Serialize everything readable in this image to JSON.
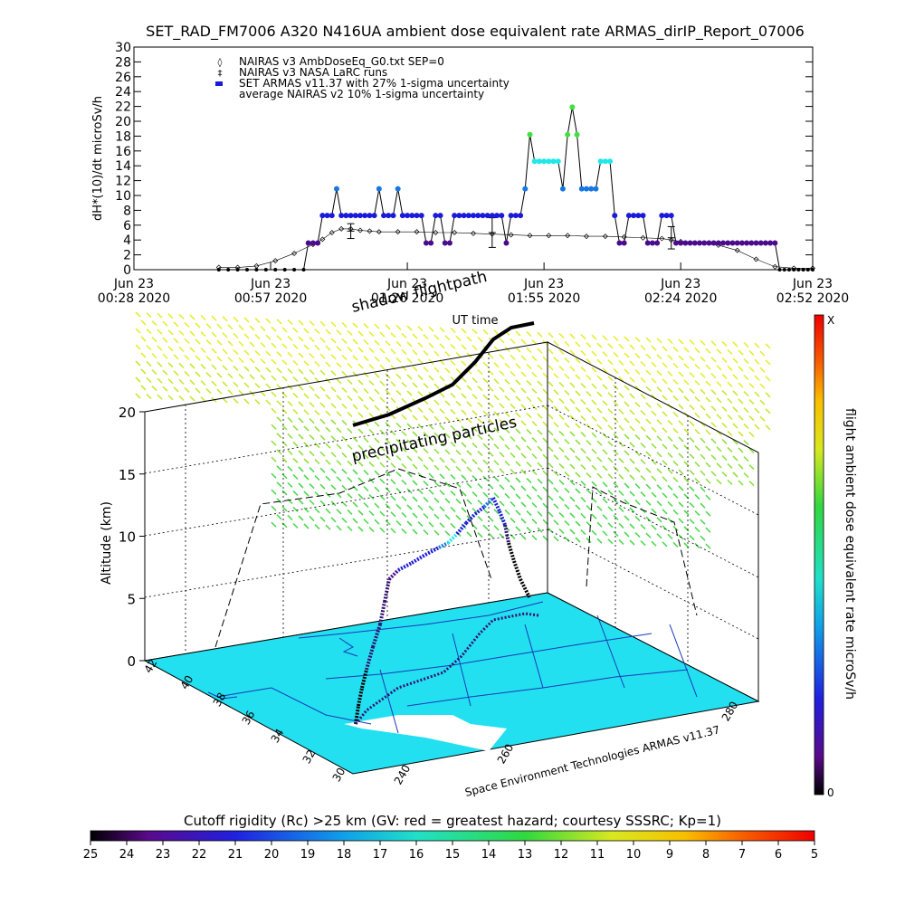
{
  "title": "SET_RAD_FM7006  A320 N416UA ambient dose equivalent rate ARMAS_dirIP_Report_07006",
  "colors": {
    "purple": "#4a0c8c",
    "dark_blue": "#1a1ad8",
    "blue": "#1878e0",
    "cyan": "#20e8e8",
    "green": "#40e040",
    "map_fill": "#22e0f0",
    "map_line": "#1838b8",
    "black": "#000000"
  },
  "chart_data": [
    {
      "type": "line",
      "ylabel": "dH*(10)/dt microSv/h",
      "xlabel": "UT time",
      "ylim": [
        0,
        30
      ],
      "yticks": [
        0,
        2,
        4,
        6,
        8,
        10,
        12,
        14,
        16,
        18,
        20,
        22,
        24,
        26,
        28,
        30
      ],
      "xlim_minutes": [
        28,
        172
      ],
      "xticks": [
        {
          "m": 28,
          "l1": "Jun 23",
          "l2": "00:28 2020"
        },
        {
          "m": 57,
          "l1": "Jun 23",
          "l2": "00:57 2020"
        },
        {
          "m": 86,
          "l1": "Jun 23",
          "l2": "01:26 2020"
        },
        {
          "m": 115,
          "l1": "Jun 23",
          "l2": "01:55 2020"
        },
        {
          "m": 144,
          "l1": "Jun 23",
          "l2": "02:24 2020"
        },
        {
          "m": 172,
          "l1": "Jun 23",
          "l2": "02:52 2020"
        }
      ],
      "legend": [
        "NAIRAS v3 AmbDoseEq_G0.txt SEP=0",
        "NAIRAS v3 NASA LaRC runs",
        "SET ARMAS v11.37 with 27% 1-sigma uncertainty",
        "average NAIRAS v2 10% 1-sigma uncertainty"
      ],
      "series": [
        {
          "name": "NAIRAS v3 AmbDoseEq_G0.txt SEP=0",
          "x": [
            46,
            50,
            54,
            58,
            62,
            66,
            68,
            70,
            72,
            74,
            76,
            78,
            80,
            84,
            88,
            92,
            96,
            100,
            104,
            108,
            112,
            116,
            120,
            124,
            128,
            132,
            136,
            140,
            142,
            144,
            146,
            148,
            152,
            156,
            160,
            164,
            168,
            172
          ],
          "y": [
            0.3,
            0.3,
            0.5,
            1.2,
            2.2,
            3.4,
            4.1,
            5.0,
            5.5,
            5.5,
            5.3,
            5.2,
            5.1,
            5.1,
            5.1,
            5.0,
            5.0,
            4.9,
            4.8,
            4.7,
            4.6,
            4.6,
            4.6,
            4.5,
            4.5,
            4.4,
            4.3,
            4.2,
            4.0,
            3.8,
            3.6,
            3.6,
            3.3,
            2.6,
            1.4,
            0.4,
            0.2,
            0.2
          ]
        },
        {
          "name": "NAIRAS v3 NASA LaRC runs",
          "x": [
            74,
            104,
            142
          ],
          "y": [
            5.2,
            5.0,
            4.3
          ],
          "err": [
            1.0,
            2.0,
            1.5
          ]
        },
        {
          "name": "SET ARMAS v11.37 with 27% 1-sigma uncertainty",
          "x": [
            46,
            48,
            50,
            52,
            54,
            56,
            58,
            60,
            62,
            64,
            65,
            66,
            67,
            68,
            69,
            70,
            71,
            72,
            73,
            74,
            75,
            76,
            77,
            78,
            79,
            80,
            81,
            82,
            83,
            84,
            85,
            86,
            87,
            88,
            89,
            90,
            91,
            92,
            93,
            94,
            95,
            96,
            97,
            98,
            99,
            100,
            101,
            102,
            103,
            104,
            105,
            106,
            107,
            108,
            109,
            110,
            111,
            112,
            113,
            114,
            115,
            116,
            117,
            118,
            119,
            120,
            121,
            122,
            123,
            124,
            125,
            126,
            127,
            128,
            129,
            130,
            131,
            132,
            133,
            134,
            135,
            136,
            137,
            138,
            139,
            140,
            141,
            142,
            143,
            144,
            145,
            146,
            147,
            148,
            149,
            150,
            151,
            152,
            153,
            154,
            155,
            156,
            157,
            158,
            159,
            160,
            161,
            162,
            163,
            164,
            165,
            166,
            167,
            168,
            169,
            170,
            171,
            172
          ],
          "y": [
            0,
            0,
            0,
            0,
            0,
            0,
            0,
            0,
            0,
            0,
            3.6,
            3.6,
            3.6,
            7.3,
            7.3,
            7.3,
            10.9,
            7.3,
            7.3,
            7.3,
            7.3,
            7.3,
            7.3,
            7.3,
            7.3,
            10.9,
            7.3,
            7.3,
            7.3,
            10.9,
            7.3,
            7.3,
            7.3,
            7.3,
            7.3,
            3.6,
            3.6,
            7.3,
            7.3,
            3.6,
            3.6,
            7.3,
            7.3,
            7.3,
            7.3,
            7.3,
            7.3,
            7.3,
            7.3,
            7.3,
            7.3,
            7.3,
            3.6,
            7.3,
            7.3,
            7.3,
            10.9,
            18.2,
            14.6,
            14.6,
            14.6,
            14.6,
            14.6,
            14.6,
            10.9,
            18.2,
            21.9,
            18.2,
            10.9,
            10.9,
            10.9,
            10.9,
            14.6,
            14.6,
            14.6,
            7.3,
            3.6,
            3.6,
            7.3,
            7.3,
            7.3,
            7.3,
            3.6,
            3.6,
            3.6,
            7.3,
            7.3,
            7.3,
            3.6,
            3.6,
            3.6,
            3.6,
            3.6,
            3.6,
            3.6,
            3.6,
            3.6,
            3.6,
            3.6,
            3.6,
            3.6,
            3.6,
            3.6,
            3.6,
            3.6,
            3.6,
            3.6,
            3.6,
            3.6,
            3.6,
            0,
            0,
            0,
            0,
            0,
            0,
            0,
            0
          ]
        }
      ]
    },
    {
      "type": "scatter",
      "zlabel": "Altitude (km)",
      "zticks": [
        0,
        5,
        10,
        15,
        20
      ],
      "lat_ticks": [
        30,
        32,
        34,
        36,
        38,
        40,
        42
      ],
      "lon_ticks": [
        240,
        260,
        280
      ],
      "overlay_labels": [
        "shadow flightpath",
        "precipitating particles"
      ],
      "credit": "Space Environment Technologies ARMAS v11.37",
      "colorbar_title": "flight ambient dose equivalent rate microSv/h",
      "colorbar_top": "X",
      "colorbar_bottom": "0"
    },
    {
      "type": "heatmap",
      "title": "Cutoff rigidity (Rc) >25 km (GV: red = greatest hazard; courtesy SSSRC; Kp=1)",
      "ticks": [
        25,
        24,
        23,
        22,
        21,
        20,
        19,
        18,
        17,
        16,
        15,
        14,
        13,
        12,
        11,
        10,
        9,
        8,
        7,
        6,
        5
      ]
    }
  ]
}
